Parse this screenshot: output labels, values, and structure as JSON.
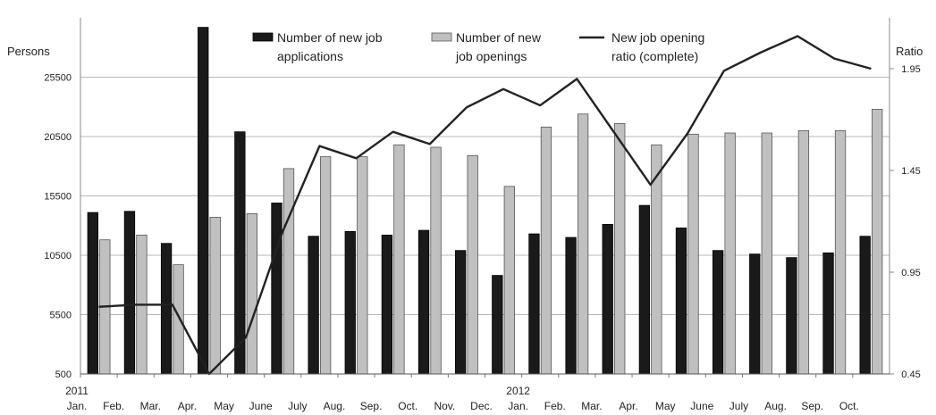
{
  "chart_data": {
    "type": "bar",
    "title": "",
    "left_axis_label": "Persons",
    "right_axis_label": "Ratio",
    "left_ylim": [
      500,
      30500
    ],
    "left_ticks": [
      "500",
      "5500",
      "10500",
      "15500",
      "20500",
      "25500"
    ],
    "right_ylim": [
      0.45,
      2.2
    ],
    "right_ticks": [
      "0.45",
      "0.95",
      "1.45",
      "1.95"
    ],
    "grid": true,
    "legend_position": "top-center",
    "year_labels": [
      {
        "index": 0,
        "label": "2011"
      },
      {
        "index": 12,
        "label": "2012"
      }
    ],
    "categories": [
      "Jan.",
      "Feb.",
      "Mar.",
      "Apr.",
      "May",
      "June",
      "July",
      "Aug.",
      "Sep.",
      "Oct.",
      "Nov.",
      "Dec.",
      "Jan.",
      "Feb.",
      "Mar.",
      "Apr.",
      "May",
      "June",
      "July",
      "Aug.",
      "Sep.",
      "Oct."
    ],
    "series": [
      {
        "name": "Number of new job applications",
        "name_lines": [
          "Number of new job",
          "applications"
        ],
        "type": "bar",
        "axis": "left",
        "color": "#1a1a1a",
        "values": [
          14100,
          14200,
          11500,
          29700,
          20900,
          14900,
          12100,
          12500,
          12200,
          12600,
          10900,
          8800,
          12300,
          12000,
          13100,
          14700,
          12800,
          10900,
          10600,
          10300,
          10700,
          12100
        ]
      },
      {
        "name": "Number of new job openings",
        "name_lines": [
          "Number of new",
          "job openings"
        ],
        "type": "bar",
        "axis": "left",
        "color": "#c0c0c0",
        "values": [
          11800,
          12200,
          9700,
          13700,
          14000,
          17800,
          18800,
          18800,
          19800,
          19600,
          18900,
          16300,
          21300,
          22400,
          21600,
          19800,
          20700,
          20800,
          20800,
          21000,
          21000,
          22800
        ]
      },
      {
        "name": "New job opening ratio (complete)",
        "name_lines": [
          "New job opening",
          "ratio (complete)"
        ],
        "type": "line",
        "axis": "right",
        "color": "#222222",
        "values": [
          0.78,
          0.79,
          0.79,
          0.45,
          0.63,
          1.15,
          1.57,
          1.51,
          1.64,
          1.58,
          1.76,
          1.85,
          1.77,
          1.9,
          1.64,
          1.38,
          1.63,
          1.94,
          2.03,
          2.11,
          2.0,
          1.95
        ]
      }
    ]
  }
}
